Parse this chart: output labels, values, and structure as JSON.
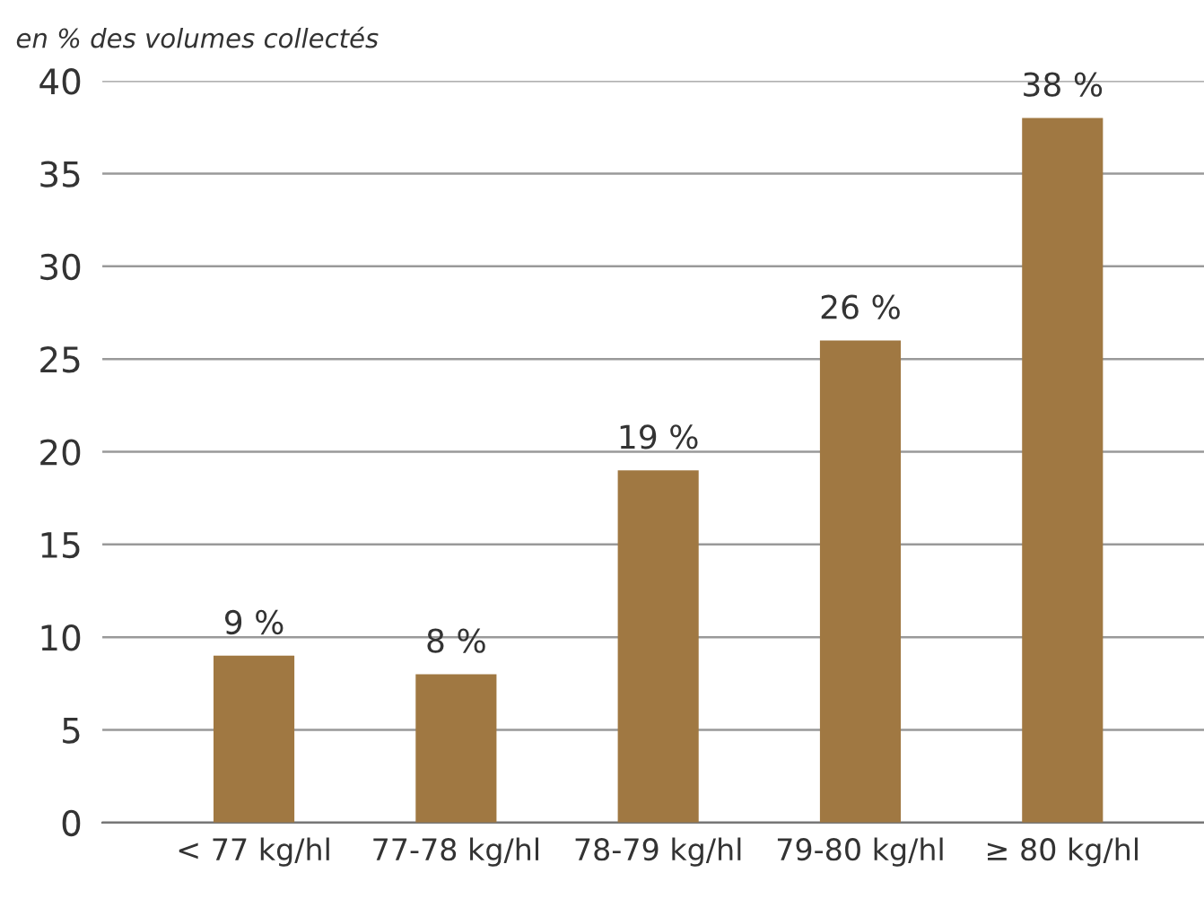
{
  "chart_data": {
    "type": "bar",
    "ylabel": "en % des volumes collectés",
    "categories": [
      "< 77 kg/hl",
      "77-78 kg/hl",
      "78-79 kg/hl",
      "79-80 kg/hl",
      "≥ 80 kg/hl"
    ],
    "values": [
      9,
      8,
      19,
      26,
      38
    ],
    "value_labels": [
      "9 %",
      "8 %",
      "19 %",
      "26 %",
      "38 %"
    ],
    "color": "#a07842",
    "ylim": [
      0,
      40
    ],
    "yticks": [
      0,
      5,
      10,
      15,
      20,
      25,
      30,
      35,
      40
    ],
    "grid": "y",
    "legend": false
  }
}
